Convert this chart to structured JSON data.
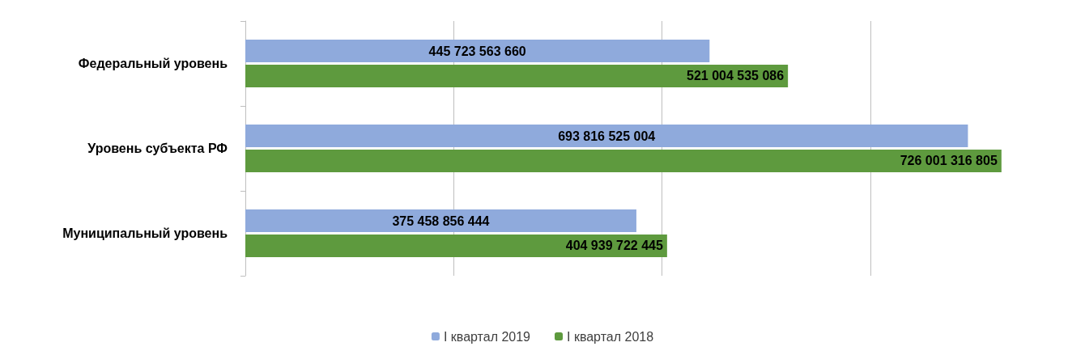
{
  "chart_data": {
    "type": "bar",
    "orientation": "horizontal",
    "categories": [
      "Федеральный уровень",
      "Уровень субъекта РФ",
      "Муниципальный уровень"
    ],
    "series": [
      {
        "name": "I квартал 2019",
        "color": "#8faadc",
        "values": [
          445723563660,
          693816525004,
          375458856444
        ]
      },
      {
        "name": "I квартал 2018",
        "color": "#5e9a3e",
        "values": [
          521004535086,
          726001316805,
          404939722445
        ]
      }
    ],
    "data_labels": true,
    "grid": "x",
    "legend": "bottom",
    "tick_labels": "y"
  }
}
